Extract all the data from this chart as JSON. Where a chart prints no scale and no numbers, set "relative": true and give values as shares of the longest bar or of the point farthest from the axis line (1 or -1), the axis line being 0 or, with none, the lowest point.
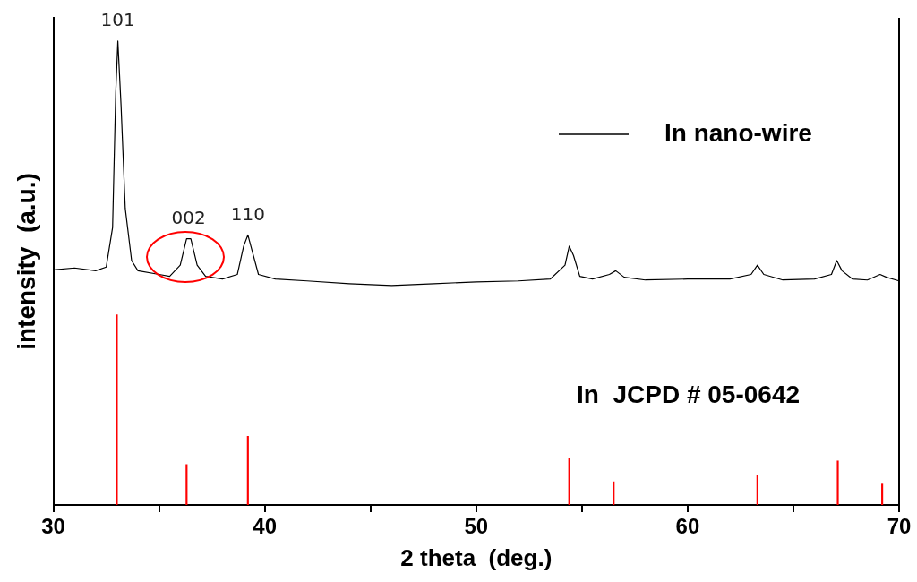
{
  "chart_data": {
    "type": "line",
    "xlabel": "2 theta  (deg.)",
    "ylabel": "intensity  (a.u.)",
    "relative": true,
    "xlim": [
      30,
      70
    ],
    "xticks": [
      30,
      {
        "value": 35,
        "label": null
      },
      40,
      {
        "value": 45,
        "label": null
      },
      50,
      {
        "value": 55,
        "label": null
      },
      60,
      {
        "value": 65,
        "label": null
      },
      70
    ],
    "legend": "top right",
    "grid": false,
    "marker": "none",
    "line_style": "solid",
    "series": [
      {
        "name": "In nano-wire",
        "color": "#000000",
        "x": [
          30,
          31,
          32,
          32.5,
          32.8,
          32.95,
          33.05,
          33.2,
          33.4,
          33.7,
          34,
          35,
          35.5,
          36,
          36.3,
          36.5,
          36.8,
          37.2,
          38,
          38.7,
          39.0,
          39.2,
          39.4,
          39.7,
          40.5,
          42,
          44,
          46,
          48,
          50,
          52,
          53.5,
          54.2,
          54.4,
          54.6,
          54.9,
          55.5,
          56.3,
          56.6,
          57,
          58,
          60,
          62,
          63,
          63.3,
          63.6,
          64.5,
          66,
          66.8,
          67.05,
          67.3,
          67.8,
          68.5,
          69.1,
          69.4,
          70
        ],
        "values": [
          0.507,
          0.511,
          0.505,
          0.513,
          0.598,
          0.89,
          1,
          0.862,
          0.639,
          0.527,
          0.505,
          0.497,
          0.493,
          0.517,
          0.574,
          0.574,
          0.517,
          0.493,
          0.487,
          0.497,
          0.558,
          0.582,
          0.548,
          0.497,
          0.487,
          0.483,
          0.477,
          0.473,
          0.477,
          0.481,
          0.483,
          0.487,
          0.517,
          0.558,
          0.538,
          0.493,
          0.487,
          0.497,
          0.505,
          0.491,
          0.485,
          0.487,
          0.487,
          0.497,
          0.517,
          0.497,
          0.485,
          0.487,
          0.497,
          0.527,
          0.505,
          0.487,
          0.485,
          0.497,
          0.491,
          0.483
        ]
      },
      {
        "name": "In  JCPD # 05-0642",
        "type": "bar",
        "color": "#ff0000",
        "x": [
          33.0,
          36.3,
          39.2,
          54.4,
          56.5,
          63.3,
          67.1,
          69.2
        ],
        "values": [
          0.41,
          0.087,
          0.148,
          0.1,
          0.05,
          0.065,
          0.095,
          0.047
        ]
      }
    ],
    "annotations": [
      {
        "text": "101",
        "x": 33.05,
        "y": 1
      },
      {
        "text": "002",
        "x": 36.4,
        "y": 0.574
      },
      {
        "text": "110",
        "x": 39.2,
        "y": 0.582
      }
    ]
  }
}
